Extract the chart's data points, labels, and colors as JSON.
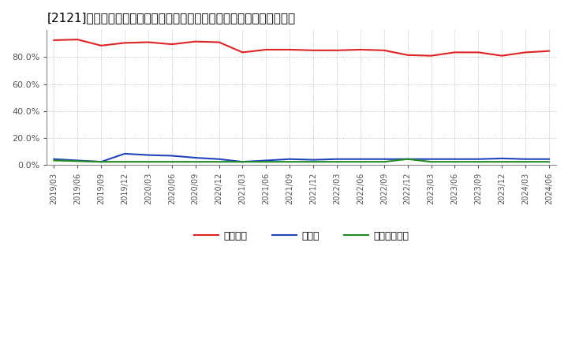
{
  "title": "[2121]　自己資本、のれん、繰延税金資産の総資産に対する比率の推移",
  "x_labels": [
    "2019/03",
    "2019/06",
    "2019/09",
    "2019/12",
    "2020/03",
    "2020/06",
    "2020/09",
    "2020/12",
    "2021/03",
    "2021/06",
    "2021/09",
    "2021/12",
    "2022/03",
    "2022/06",
    "2022/09",
    "2022/12",
    "2023/03",
    "2023/06",
    "2023/09",
    "2023/12",
    "2024/03",
    "2024/06"
  ],
  "jikoshihon": [
    92.5,
    93.0,
    88.5,
    90.5,
    91.0,
    89.5,
    91.5,
    91.0,
    83.5,
    85.5,
    85.5,
    85.0,
    85.0,
    85.5,
    85.0,
    81.5,
    81.0,
    83.5,
    83.5,
    81.0,
    83.5,
    84.5
  ],
  "noren": [
    4.5,
    3.5,
    2.5,
    8.5,
    7.5,
    7.0,
    5.5,
    4.5,
    2.5,
    3.5,
    4.5,
    4.0,
    4.5,
    4.5,
    4.5,
    4.5,
    4.5,
    4.5,
    4.5,
    5.0,
    4.5,
    4.5
  ],
  "kuenzeizei": [
    3.5,
    3.0,
    2.5,
    2.5,
    2.5,
    2.5,
    2.5,
    2.5,
    2.5,
    2.5,
    2.5,
    2.5,
    2.5,
    2.5,
    2.5,
    4.5,
    2.5,
    2.5,
    2.5,
    2.5,
    2.5,
    2.5
  ],
  "color_jikoshihon": "#dd2222",
  "color_noren": "#2244bb",
  "color_kuenzeizei": "#228822",
  "legend_jikoshihon": "自己資本",
  "legend_noren": "のれん",
  "legend_kuenzeizei": "繰延税金資産",
  "ylim": [
    0,
    100
  ],
  "background_color": "#ffffff",
  "grid_color": "#999999",
  "title_fontsize": 11,
  "legend_fontsize": 9,
  "tick_fontsize": 8
}
